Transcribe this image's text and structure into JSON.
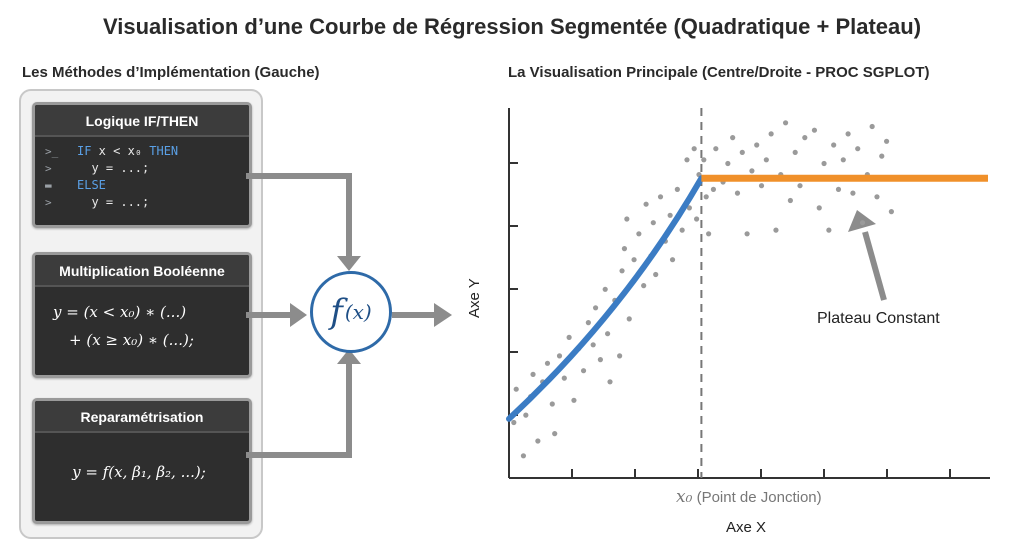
{
  "title": "Visualisation d’une Courbe de Régression Segmentée (Quadratique + Plateau)",
  "left_section_title": "Les Méthodes d’Implémentation (Gauche)",
  "right_section_title": "La Visualisation Principale (Centre/Droite - PROC SGPLOT)",
  "cards": {
    "if_then": {
      "title": "Logique IF/THEN",
      "lines": [
        {
          "gutter": ">_",
          "kw1": "IF",
          "text": " x < x₀ ",
          "kw2": "THEN"
        },
        {
          "gutter": ">",
          "text": "  y = ...;"
        },
        {
          "gutter": "▬",
          "kw1": "ELSE"
        },
        {
          "gutter": ">",
          "text": "  y = ...;"
        }
      ]
    },
    "boolean": {
      "title": "Multiplication Booléenne",
      "line1": "y = (x < x₀) ∗ (...)",
      "line2": "+ (x ≥ x₀) ∗ (...);"
    },
    "reparam": {
      "title": "Reparamétrisation",
      "formula": "y = f(x, β₁, β₂, ...);"
    }
  },
  "function_node": {
    "f": "f",
    "arg": "(x)"
  },
  "chart_data": {
    "type": "scatter",
    "xlabel": "Axe X",
    "ylabel": "Axe Y",
    "x0_label_symbol": "x₀",
    "x0_label_text": "(Point de Jonction)",
    "annotation": "Plateau Constant",
    "xlim": [
      0,
      10
    ],
    "ylim": [
      0,
      10
    ],
    "junction_x": 4,
    "plateau_y": 8.1,
    "quadratic_curve": {
      "start": [
        0,
        1.6
      ],
      "end": [
        4,
        8.1
      ]
    },
    "colors": {
      "quadratic": "#3b7cc4",
      "plateau": "#f0902a",
      "points": "#9a9a9a",
      "junction": "#777777"
    },
    "points": [
      [
        0.1,
        1.5
      ],
      [
        0.15,
        2.4
      ],
      [
        0.3,
        0.6
      ],
      [
        0.35,
        1.7
      ],
      [
        0.45,
        2.2
      ],
      [
        0.5,
        2.8
      ],
      [
        0.6,
        1.0
      ],
      [
        0.7,
        2.6
      ],
      [
        0.8,
        3.1
      ],
      [
        0.9,
        2.0
      ],
      [
        0.95,
        1.2
      ],
      [
        1.05,
        3.3
      ],
      [
        1.15,
        2.7
      ],
      [
        1.25,
        3.8
      ],
      [
        1.35,
        2.1
      ],
      [
        1.45,
        3.5
      ],
      [
        1.55,
        2.9
      ],
      [
        1.65,
        4.2
      ],
      [
        1.75,
        3.6
      ],
      [
        1.8,
        4.6
      ],
      [
        1.9,
        3.2
      ],
      [
        2.0,
        5.1
      ],
      [
        2.05,
        3.9
      ],
      [
        2.1,
        2.6
      ],
      [
        2.2,
        4.8
      ],
      [
        2.3,
        3.3
      ],
      [
        2.35,
        5.6
      ],
      [
        2.4,
        6.2
      ],
      [
        2.45,
        7.0
      ],
      [
        2.5,
        4.3
      ],
      [
        2.6,
        5.9
      ],
      [
        2.7,
        6.6
      ],
      [
        2.8,
        5.2
      ],
      [
        2.85,
        7.4
      ],
      [
        2.95,
        6.0
      ],
      [
        3.0,
        6.9
      ],
      [
        3.05,
        5.5
      ],
      [
        3.15,
        7.6
      ],
      [
        3.25,
        6.4
      ],
      [
        3.35,
        7.1
      ],
      [
        3.4,
        5.9
      ],
      [
        3.5,
        7.8
      ],
      [
        3.6,
        6.7
      ],
      [
        3.7,
        8.6
      ],
      [
        3.75,
        7.3
      ],
      [
        3.85,
        8.9
      ],
      [
        3.9,
        7.0
      ],
      [
        3.95,
        8.2
      ],
      [
        4.05,
        8.6
      ],
      [
        4.1,
        7.6
      ],
      [
        4.15,
        6.6
      ],
      [
        4.25,
        7.8
      ],
      [
        4.3,
        8.9
      ],
      [
        4.45,
        8.0
      ],
      [
        4.55,
        8.5
      ],
      [
        4.65,
        9.2
      ],
      [
        4.75,
        7.7
      ],
      [
        4.85,
        8.8
      ],
      [
        4.95,
        6.6
      ],
      [
        5.05,
        8.3
      ],
      [
        5.15,
        9.0
      ],
      [
        5.25,
        7.9
      ],
      [
        5.35,
        8.6
      ],
      [
        5.45,
        9.3
      ],
      [
        5.55,
        6.7
      ],
      [
        5.65,
        8.2
      ],
      [
        5.75,
        9.6
      ],
      [
        5.85,
        7.5
      ],
      [
        5.95,
        8.8
      ],
      [
        6.05,
        7.9
      ],
      [
        6.15,
        9.2
      ],
      [
        6.25,
        8.1
      ],
      [
        6.35,
        9.4
      ],
      [
        6.45,
        7.3
      ],
      [
        6.55,
        8.5
      ],
      [
        6.65,
        6.7
      ],
      [
        6.75,
        9.0
      ],
      [
        6.85,
        7.8
      ],
      [
        6.95,
        8.6
      ],
      [
        7.05,
        9.3
      ],
      [
        7.15,
        7.7
      ],
      [
        7.25,
        8.9
      ],
      [
        7.35,
        6.9
      ],
      [
        7.45,
        8.2
      ],
      [
        7.55,
        9.5
      ],
      [
        7.65,
        7.6
      ],
      [
        7.75,
        8.7
      ],
      [
        7.85,
        9.1
      ],
      [
        7.95,
        7.2
      ]
    ]
  }
}
